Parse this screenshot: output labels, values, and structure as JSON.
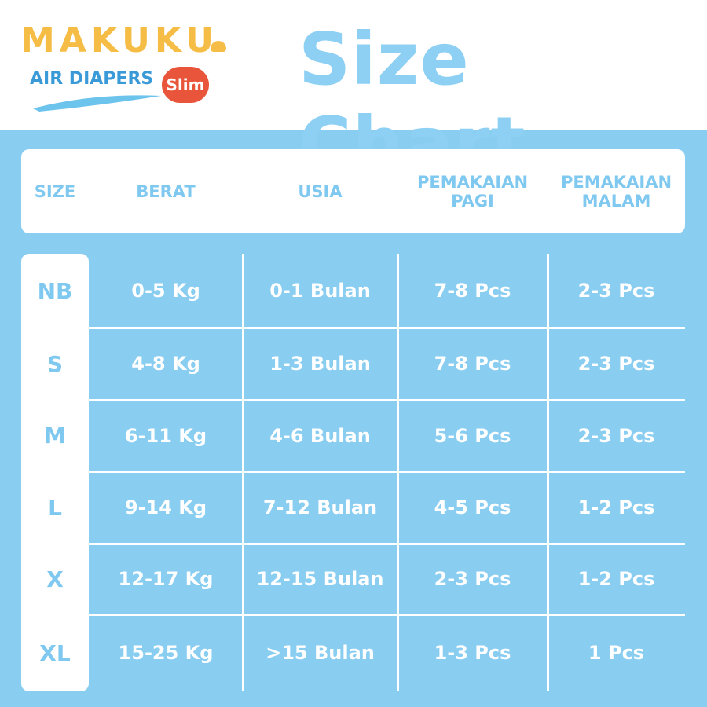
{
  "logo": {
    "brand": "MAKUKU",
    "product": "AIR DIAPERS",
    "badge": "Slim"
  },
  "title": "Size Chart",
  "table": {
    "headers": [
      "SIZE",
      "BERAT",
      "USIA",
      "PEMAKAIAN PAGI",
      "PEMAKAIAN MALAM"
    ],
    "rows": [
      [
        "NB",
        "0-5 Kg",
        "0-1 Bulan",
        "7-8 Pcs",
        "2-3 Pcs"
      ],
      [
        "S",
        "4-8 Kg",
        "1-3 Bulan",
        "7-8 Pcs",
        "2-3 Pcs"
      ],
      [
        "M",
        "6-11 Kg",
        "4-6 Bulan",
        "5-6 Pcs",
        "2-3 Pcs"
      ],
      [
        "L",
        "9-14 Kg",
        "7-12 Bulan",
        "4-5 Pcs",
        "1-2 Pcs"
      ],
      [
        "X",
        "12-17 Kg",
        "12-15 Bulan",
        "2-3 Pcs",
        "1-2 Pcs"
      ],
      [
        "XL",
        "15-25 Kg",
        ">15 Bulan",
        "1-3 Pcs",
        "1 Pcs"
      ]
    ]
  }
}
